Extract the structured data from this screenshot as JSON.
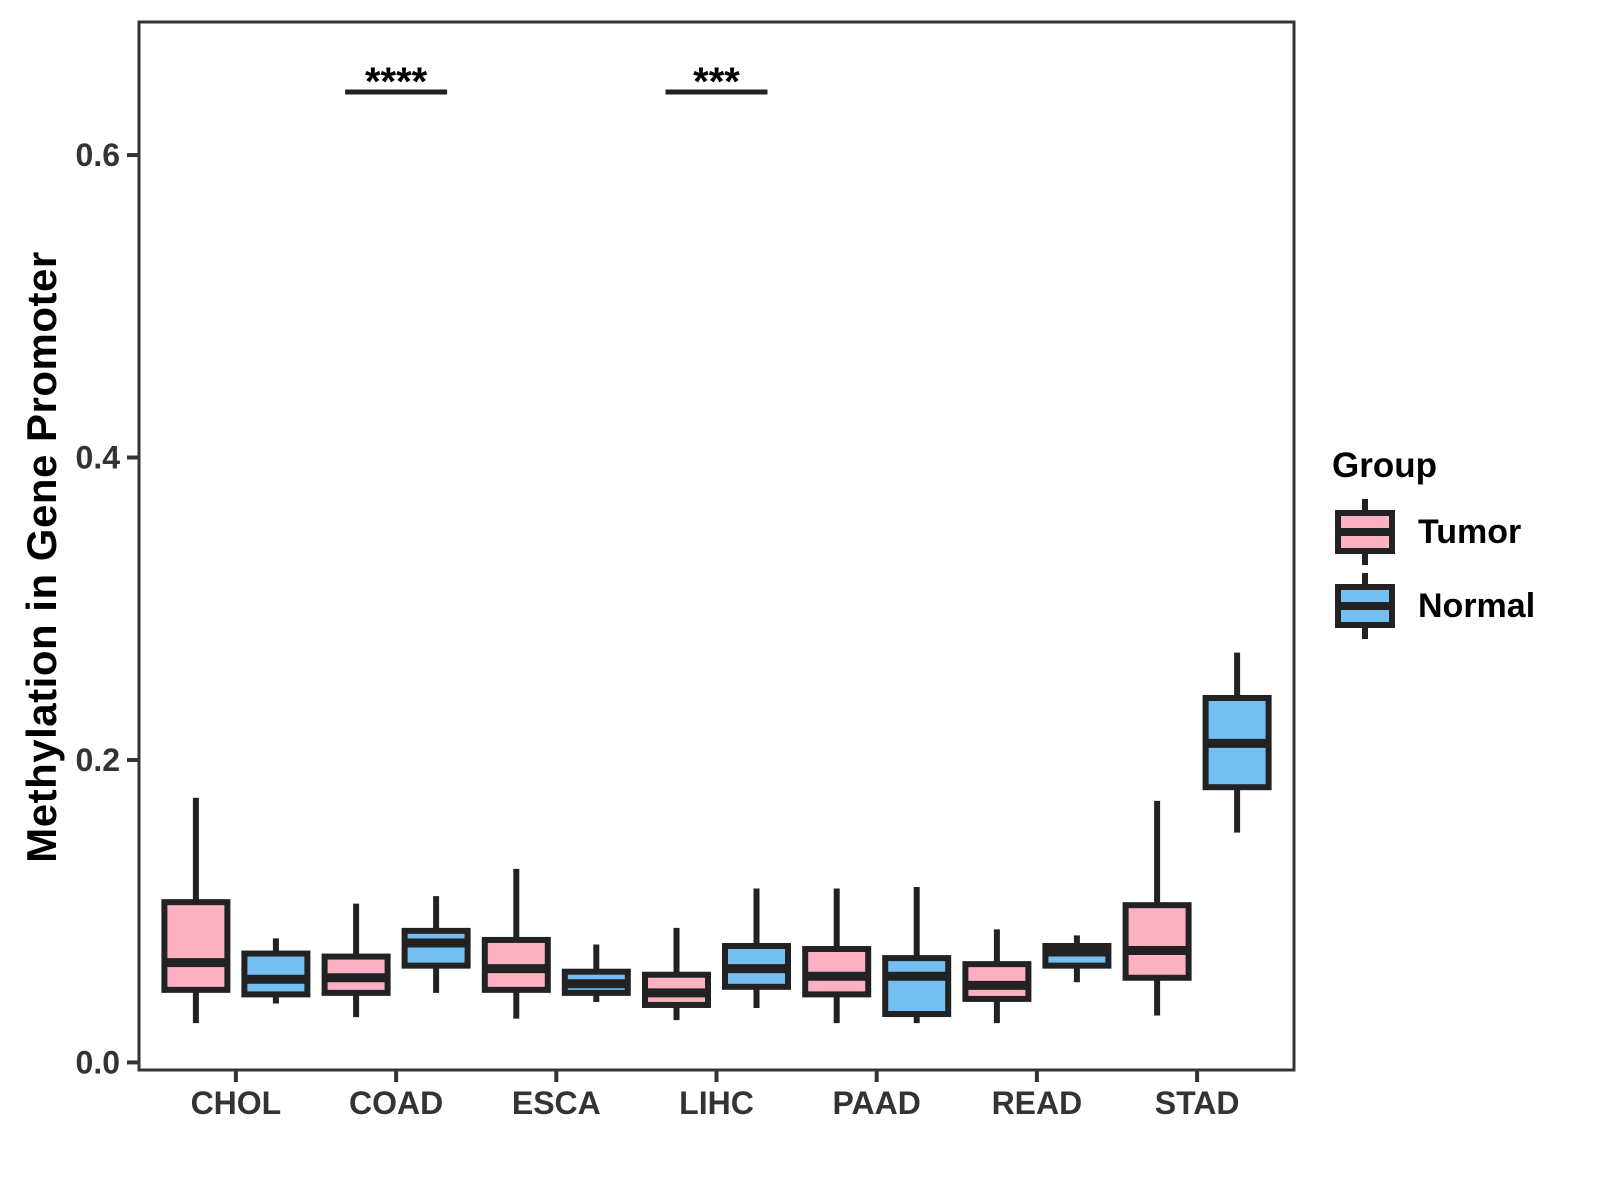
{
  "figure": {
    "background": "#ffffff"
  },
  "colors": {
    "tumor_fill": "#FBB1C2",
    "normal_fill": "#74BEF2",
    "box_outline": "#222222",
    "panel_border": "#333333",
    "axis_text": "#333333",
    "title_text": "#000000"
  },
  "y_axis": {
    "title": "Methylation in Gene Promoter",
    "tick_labels": [
      "0.0",
      "0.2",
      "0.4",
      "0.6"
    ],
    "tick_values": [
      0,
      0.2,
      0.4,
      0.6
    ]
  },
  "x_axis": {
    "categories": [
      "CHOL",
      "COAD",
      "ESCA",
      "LIHC",
      "PAAD",
      "READ",
      "STAD"
    ]
  },
  "legend": {
    "title": "Group",
    "items": [
      {
        "label": "Tumor",
        "color": "#FBB1C2"
      },
      {
        "label": "Normal",
        "color": "#74BEF2"
      }
    ]
  },
  "annotations": [
    {
      "category": "COAD",
      "stars": "****"
    },
    {
      "category": "LIHC",
      "stars": "***"
    }
  ],
  "chart_data": {
    "type": "boxplot",
    "title": "",
    "xlabel": "",
    "ylabel": "Methylation in Gene Promoter",
    "ylim": [
      -0.005,
      0.688
    ],
    "grid": false,
    "legend_position": "right",
    "categories": [
      "CHOL",
      "COAD",
      "ESCA",
      "LIHC",
      "PAAD",
      "READ",
      "STAD"
    ],
    "series": [
      {
        "name": "Tumor",
        "color": "#FBB1C2",
        "boxes": [
          {
            "category": "CHOL",
            "whisker_low": 0.026,
            "q1": 0.048,
            "median": 0.066,
            "q3": 0.106,
            "whisker_high": 0.175
          },
          {
            "category": "COAD",
            "whisker_low": 0.03,
            "q1": 0.046,
            "median": 0.056,
            "q3": 0.07,
            "whisker_high": 0.105
          },
          {
            "category": "ESCA",
            "whisker_low": 0.029,
            "q1": 0.048,
            "median": 0.062,
            "q3": 0.081,
            "whisker_high": 0.128
          },
          {
            "category": "LIHC",
            "whisker_low": 0.028,
            "q1": 0.038,
            "median": 0.046,
            "q3": 0.058,
            "whisker_high": 0.089
          },
          {
            "category": "PAAD",
            "whisker_low": 0.026,
            "q1": 0.045,
            "median": 0.057,
            "q3": 0.075,
            "whisker_high": 0.115
          },
          {
            "category": "READ",
            "whisker_low": 0.026,
            "q1": 0.042,
            "median": 0.051,
            "q3": 0.065,
            "whisker_high": 0.088
          },
          {
            "category": "STAD",
            "whisker_low": 0.031,
            "q1": 0.056,
            "median": 0.074,
            "q3": 0.104,
            "whisker_high": 0.173
          }
        ]
      },
      {
        "name": "Normal",
        "color": "#74BEF2",
        "boxes": [
          {
            "category": "CHOL",
            "whisker_low": 0.039,
            "q1": 0.045,
            "median": 0.055,
            "q3": 0.072,
            "whisker_high": 0.082
          },
          {
            "category": "COAD",
            "whisker_low": 0.046,
            "q1": 0.064,
            "median": 0.079,
            "q3": 0.087,
            "whisker_high": 0.11
          },
          {
            "category": "ESCA",
            "whisker_low": 0.04,
            "q1": 0.046,
            "median": 0.052,
            "q3": 0.06,
            "whisker_high": 0.078
          },
          {
            "category": "LIHC",
            "whisker_low": 0.036,
            "q1": 0.05,
            "median": 0.062,
            "q3": 0.077,
            "whisker_high": 0.115
          },
          {
            "category": "PAAD",
            "whisker_low": 0.026,
            "q1": 0.032,
            "median": 0.057,
            "q3": 0.069,
            "whisker_high": 0.116
          },
          {
            "category": "READ",
            "whisker_low": 0.053,
            "q1": 0.064,
            "median": 0.073,
            "q3": 0.077,
            "whisker_high": 0.084
          },
          {
            "category": "STAD",
            "whisker_low": 0.152,
            "q1": 0.182,
            "median": 0.211,
            "q3": 0.241,
            "whisker_high": 0.271
          }
        ]
      }
    ]
  }
}
